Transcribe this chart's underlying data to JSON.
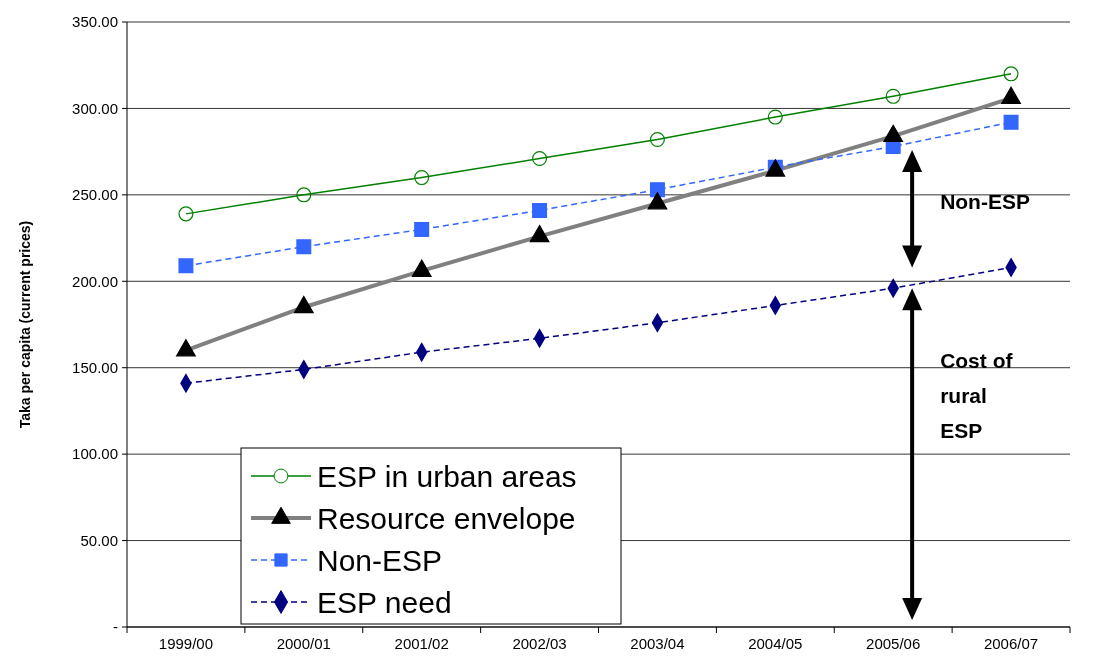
{
  "chart_data": {
    "type": "line",
    "ylabel": "Taka per capita (current prices)",
    "categories": [
      "1999/00",
      "2000/01",
      "2001/02",
      "2002/03",
      "2003/04",
      "2004/05",
      "2005/06",
      "2006/07"
    ],
    "series": [
      {
        "name": "ESP in urban areas",
        "color": "#008000",
        "marker": "circle",
        "line_style": "solid",
        "values": [
          239,
          250,
          260,
          271,
          282,
          295,
          307,
          320
        ]
      },
      {
        "name": "Resource envelope",
        "color": "#808080",
        "marker": "triangle",
        "line_style": "solid",
        "values": [
          160,
          185,
          206,
          226,
          245,
          264,
          284,
          306
        ]
      },
      {
        "name": "Non-ESP",
        "color": "#3366ff",
        "marker": "square",
        "line_style": "dashed",
        "values": [
          209,
          220,
          230,
          241,
          253,
          266,
          278,
          292
        ]
      },
      {
        "name": "ESP need",
        "color": "#000080",
        "marker": "diamond",
        "line_style": "dashed",
        "values": [
          141,
          149,
          159,
          167,
          176,
          186,
          196,
          208
        ]
      }
    ],
    "ylim": [
      0,
      350
    ],
    "yticks": [
      {
        "value": 0,
        "label": "-"
      },
      {
        "value": 50,
        "label": "50.00"
      },
      {
        "value": 100,
        "label": "100.00"
      },
      {
        "value": 150,
        "label": "150.00"
      },
      {
        "value": 200,
        "label": "200.00"
      },
      {
        "value": 250,
        "label": "250.00"
      },
      {
        "value": 300,
        "label": "300.00"
      },
      {
        "value": 350,
        "label": "350.00"
      }
    ],
    "grid": "y",
    "legend": "bottom left",
    "annotations": [
      "Non-ESP",
      "Cost of rural ESP"
    ]
  }
}
